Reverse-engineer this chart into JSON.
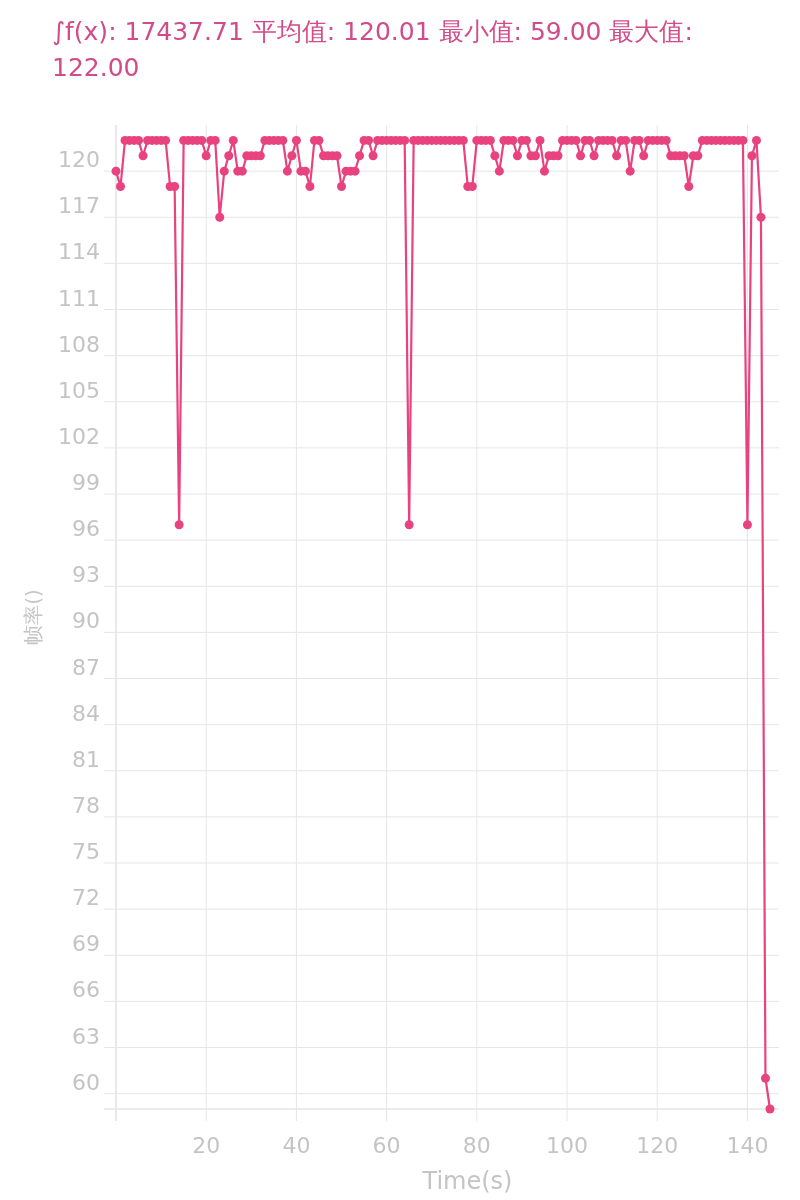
{
  "chart_data": {
    "type": "line",
    "title": "∫f(x): 17437.71 平均值: 120.01 最小值: 59.00 最大值: 122.00",
    "xlabel": "Time(s)",
    "ylabel": "帧率()",
    "x": [
      0,
      1,
      2,
      3,
      4,
      5,
      6,
      7,
      8,
      9,
      10,
      11,
      12,
      13,
      14,
      15,
      16,
      17,
      18,
      19,
      20,
      21,
      22,
      23,
      24,
      25,
      26,
      27,
      28,
      29,
      30,
      31,
      32,
      33,
      34,
      35,
      36,
      37,
      38,
      39,
      40,
      41,
      42,
      43,
      44,
      45,
      46,
      47,
      48,
      49,
      50,
      51,
      52,
      53,
      54,
      55,
      56,
      57,
      58,
      59,
      60,
      61,
      62,
      63,
      64,
      65,
      66,
      67,
      68,
      69,
      70,
      71,
      72,
      73,
      74,
      75,
      76,
      77,
      78,
      79,
      80,
      81,
      82,
      83,
      84,
      85,
      86,
      87,
      88,
      89,
      90,
      91,
      92,
      93,
      94,
      95,
      96,
      97,
      98,
      99,
      100,
      101,
      102,
      103,
      104,
      105,
      106,
      107,
      108,
      109,
      110,
      111,
      112,
      113,
      114,
      115,
      116,
      117,
      118,
      119,
      120,
      121,
      122,
      123,
      124,
      125,
      126,
      127,
      128,
      129,
      130,
      131,
      132,
      133,
      134,
      135,
      136,
      137,
      138,
      139,
      140,
      141,
      142,
      143,
      144,
      145
    ],
    "values": [
      120,
      119,
      122,
      122,
      122,
      122,
      121,
      122,
      122,
      122,
      122,
      122,
      119,
      119,
      97,
      122,
      122,
      122,
      122,
      122,
      121,
      122,
      122,
      117,
      120,
      121,
      122,
      120,
      120,
      121,
      121,
      121,
      121,
      122,
      122,
      122,
      122,
      122,
      120,
      121,
      122,
      120,
      120,
      119,
      122,
      122,
      121,
      121,
      121,
      121,
      119,
      120,
      120,
      120,
      121,
      122,
      122,
      121,
      122,
      122,
      122,
      122,
      122,
      122,
      122,
      97,
      122,
      122,
      122,
      122,
      122,
      122,
      122,
      122,
      122,
      122,
      122,
      122,
      119,
      119,
      122,
      122,
      122,
      122,
      121,
      120,
      122,
      122,
      122,
      121,
      122,
      122,
      121,
      121,
      122,
      120,
      121,
      121,
      121,
      122,
      122,
      122,
      122,
      121,
      122,
      122,
      121,
      122,
      122,
      122,
      122,
      121,
      122,
      122,
      120,
      122,
      122,
      121,
      122,
      122,
      122,
      122,
      122,
      121,
      121,
      121,
      121,
      119,
      121,
      121,
      122,
      122,
      122,
      122,
      122,
      122,
      122,
      122,
      122,
      122,
      97,
      121,
      122,
      117,
      61,
      59
    ],
    "color": "#e8437f",
    "xlim": [
      0,
      147
    ],
    "ylim": [
      59,
      123
    ],
    "xticks": [
      {
        "value": 0,
        "label": null
      },
      20,
      40,
      60,
      80,
      100,
      120,
      140
    ],
    "yticks": [
      60,
      63,
      66,
      69,
      72,
      75,
      78,
      81,
      84,
      87,
      90,
      93,
      96,
      99,
      102,
      105,
      108,
      111,
      114,
      117,
      120
    ],
    "grid": true,
    "marker": "circle",
    "line_style": "solid"
  }
}
